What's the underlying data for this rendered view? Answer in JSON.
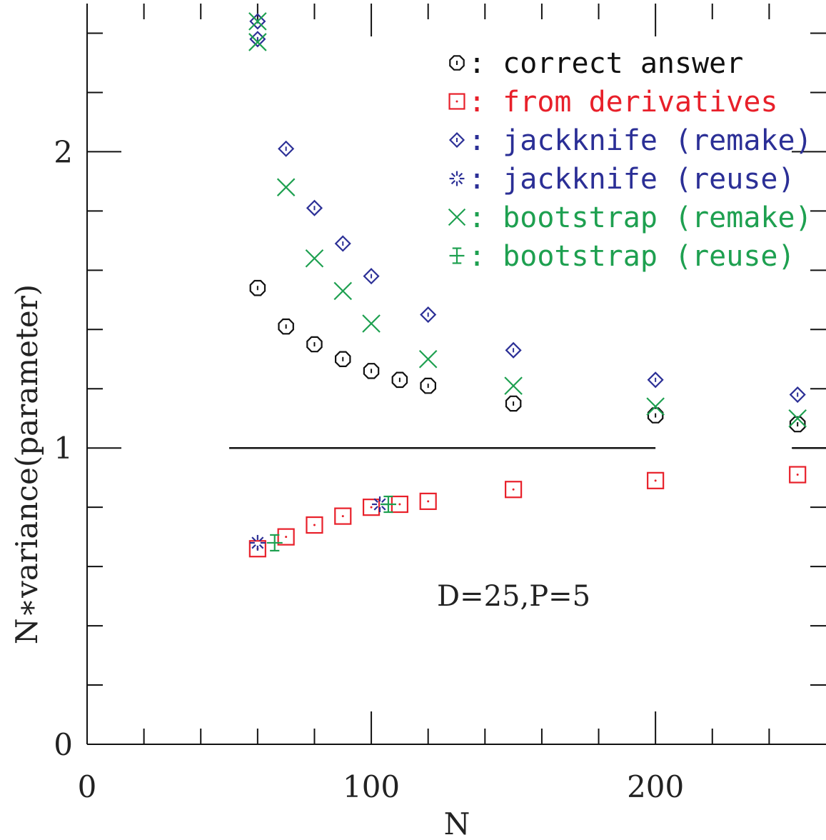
{
  "chart_data": {
    "type": "scatter",
    "xlabel": "N",
    "ylabel": "N∗variance(parameter)",
    "xlim": [
      0,
      260
    ],
    "ylim": [
      0,
      2.5
    ],
    "x_ticks": [
      "0",
      "100",
      "200"
    ],
    "y_ticks": [
      "0",
      "1",
      "2"
    ],
    "grid": false,
    "legend_position": "top-right",
    "reference_line": {
      "y": 1.0,
      "x_from": 50,
      "x_to": 200
    },
    "annotation": "D=25,P=5",
    "series": [
      {
        "name": "correct answer",
        "marker": "octagon",
        "color": "#111111",
        "x": [
          60,
          70,
          80,
          90,
          100,
          110,
          120,
          150,
          200,
          250
        ],
        "y": [
          1.54,
          1.41,
          1.35,
          1.3,
          1.26,
          1.23,
          1.21,
          1.15,
          1.11,
          1.08
        ]
      },
      {
        "name": "from derivatives",
        "marker": "square",
        "color": "#e8202a",
        "x": [
          60,
          70,
          80,
          90,
          100,
          110,
          120,
          150,
          200,
          250
        ],
        "y": [
          0.66,
          0.7,
          0.74,
          0.77,
          0.8,
          0.81,
          0.82,
          0.86,
          0.89,
          0.91
        ]
      },
      {
        "name": "jackknife (remake)",
        "marker": "diamond",
        "color": "#2b2f96",
        "x": [
          60,
          60,
          70,
          80,
          90,
          100,
          120,
          150,
          200,
          250
        ],
        "y": [
          2.44,
          2.38,
          2.01,
          1.81,
          1.69,
          1.58,
          1.45,
          1.33,
          1.23,
          1.18
        ]
      },
      {
        "name": "jackknife (reuse)",
        "marker": "asterisk",
        "color": "#2b2f96",
        "x": [
          60,
          103
        ],
        "y": [
          0.68,
          0.81
        ]
      },
      {
        "name": "bootstrap (remake)",
        "marker": "cross",
        "color": "#1ea050",
        "x": [
          60,
          60,
          70,
          80,
          90,
          100,
          120,
          150,
          200,
          250
        ],
        "y": [
          2.44,
          2.37,
          1.88,
          1.64,
          1.53,
          1.42,
          1.3,
          1.21,
          1.14,
          1.1
        ]
      },
      {
        "name": "bootstrap (reuse)",
        "marker": "plus-bar",
        "color": "#1ea050",
        "x": [
          66,
          106
        ],
        "y": [
          0.68,
          0.81
        ]
      }
    ]
  }
}
